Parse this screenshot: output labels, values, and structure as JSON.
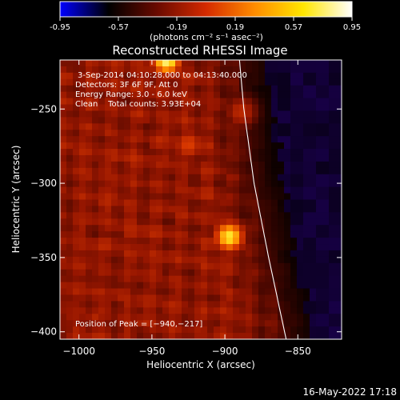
{
  "colorbar": {
    "ticks": [
      "-0.95",
      "-0.57",
      "-0.19",
      "0.19",
      "0.57",
      "0.95"
    ],
    "units": "(photons cm⁻² s⁻¹ asec⁻²)",
    "range": [
      -0.95,
      0.95
    ],
    "colormap": [
      "#0000ff",
      "#000000",
      "#6a0a00",
      "#d42a00",
      "#ff8c00",
      "#ffe600",
      "#ffffff"
    ]
  },
  "chart_data": {
    "type": "heatmap",
    "title": "Reconstructed RHESSI Image",
    "xlabel": "Heliocentric X (arcsec)",
    "ylabel": "Heliocentric Y (arcsec)",
    "xlim": [
      -1013,
      -820
    ],
    "ylim": [
      -405,
      -217
    ],
    "xticks": [
      {
        "value": -1000,
        "label": "−1000"
      },
      {
        "value": -950,
        "label": "−950"
      },
      {
        "value": -900,
        "label": "−900"
      },
      {
        "value": -850,
        "label": "−850"
      }
    ],
    "yticks": [
      {
        "value": -250,
        "label": "−250"
      },
      {
        "value": -300,
        "label": "−300"
      },
      {
        "value": -350,
        "label": "−350"
      },
      {
        "value": -400,
        "label": "−400"
      }
    ],
    "annotations": [
      "3-Sep-2014 04:10:28.000 to 04:13:40.000",
      "Detectors: 3F 6F 9F, Att 0",
      "Energy Range: 3.0 - 6.0 keV",
      "Clean    Total counts: 3.93E+04"
    ],
    "peak_label": "Position of Peak = [−940,−217]",
    "sources": [
      {
        "x": -940,
        "y": -217,
        "peak": 0.95
      },
      {
        "x": -897,
        "y": -336,
        "peak": 0.9
      },
      {
        "x": -925,
        "y": -274,
        "peak": 0.6
      },
      {
        "x": -889,
        "y": -252,
        "peak": 0.5
      }
    ],
    "limb": [
      {
        "x": -890,
        "y": -217
      },
      {
        "x": -887,
        "y": -250
      },
      {
        "x": -880,
        "y": -300
      },
      {
        "x": -870,
        "y": -350
      },
      {
        "x": -858,
        "y": -405
      }
    ]
  },
  "footer_timestamp": "16-May-2022 17:18"
}
